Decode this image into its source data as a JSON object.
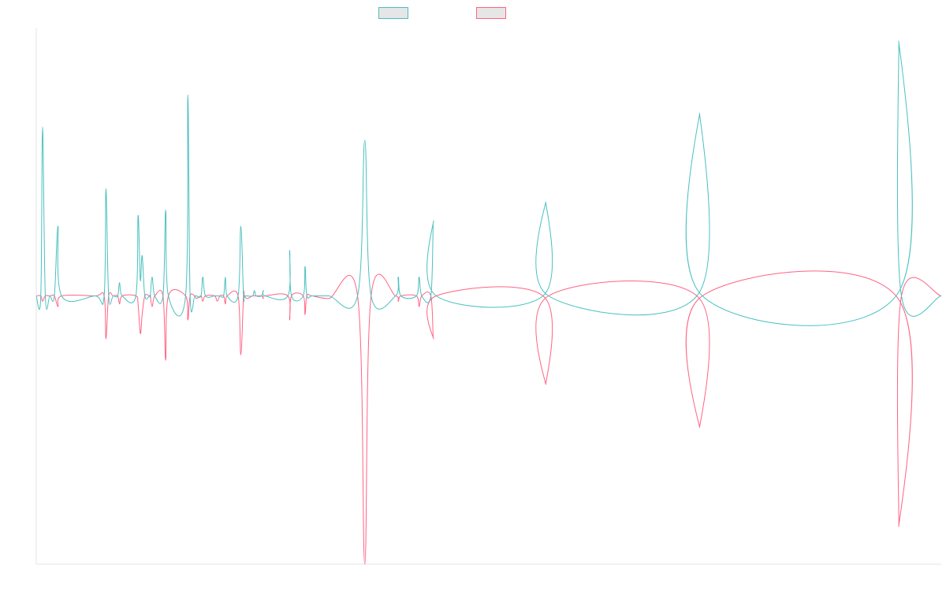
{
  "colors": {
    "series_a": "#4bc0c0",
    "series_b": "#ff6384",
    "legend_fill": "#e6e6e6",
    "axis": "#e5e5e5",
    "background": "#ffffff"
  },
  "legend": {
    "items": [
      {
        "label": "",
        "color": "#4bc0c0"
      },
      {
        "label": "",
        "color": "#ff6384"
      }
    ]
  },
  "chart_data": {
    "type": "line",
    "title": "",
    "xlabel": "",
    "ylabel": "",
    "ylim": [
      -1,
      1
    ],
    "grid": false,
    "legend_position": "top",
    "series": [
      {
        "color": "#4bc0c0",
        "points": [
          [
            0.0,
            0.0
          ],
          [
            0.5,
            0.0
          ],
          [
            0.7,
            0.63
          ],
          [
            1.0,
            0.0
          ],
          [
            1.5,
            0.0
          ],
          [
            2.0,
            0.0
          ],
          [
            2.4,
            0.26
          ],
          [
            2.8,
            0.0
          ],
          [
            6.5,
            0.0
          ],
          [
            7.5,
            0.0
          ],
          [
            7.7,
            0.4
          ],
          [
            8.0,
            0.0
          ],
          [
            8.5,
            0.0
          ],
          [
            9.0,
            0.0
          ],
          [
            9.2,
            0.05
          ],
          [
            9.5,
            0.0
          ],
          [
            11.0,
            0.0
          ],
          [
            11.25,
            0.3
          ],
          [
            11.5,
            0.06
          ],
          [
            11.7,
            0.15
          ],
          [
            12.0,
            0.0
          ],
          [
            12.5,
            0.0
          ],
          [
            12.6,
            0.0
          ],
          [
            12.8,
            0.07
          ],
          [
            13.1,
            0.0
          ],
          [
            14.0,
            0.0
          ],
          [
            14.3,
            0.32
          ],
          [
            14.6,
            0.0
          ],
          [
            16.5,
            0.0
          ],
          [
            16.75,
            0.75
          ],
          [
            17.0,
            0.0
          ],
          [
            17.5,
            0.0
          ],
          [
            17.7,
            0.0
          ],
          [
            18.2,
            0.0
          ],
          [
            18.4,
            0.07
          ],
          [
            18.7,
            0.0
          ],
          [
            19.7,
            0.0
          ],
          [
            20.0,
            0.0
          ],
          [
            20.3,
            0.0
          ],
          [
            20.7,
            0.0
          ],
          [
            20.9,
            0.07
          ],
          [
            21.1,
            0.0
          ],
          [
            22.3,
            0.0
          ],
          [
            22.6,
            0.26
          ],
          [
            22.9,
            0.0
          ],
          [
            23.0,
            0.0
          ],
          [
            23.3,
            0.0
          ],
          [
            23.9,
            0.0
          ],
          [
            24.1,
            0.02
          ],
          [
            24.3,
            0.0
          ],
          [
            24.9,
            0.0
          ],
          [
            25.1,
            0.02
          ],
          [
            25.3,
            0.0
          ],
          [
            27.8,
            0.0
          ],
          [
            28.0,
            0.17
          ],
          [
            28.2,
            0.0
          ],
          [
            29.5,
            0.0
          ],
          [
            29.7,
            0.11
          ],
          [
            29.9,
            0.0
          ],
          [
            30.5,
            0.0
          ],
          [
            32.3,
            0.0
          ],
          [
            35.5,
            0.0
          ],
          [
            36.3,
            0.58
          ],
          [
            37.0,
            0.0
          ],
          [
            39.7,
            0.0
          ],
          [
            40.0,
            0.07
          ],
          [
            40.3,
            0.0
          ],
          [
            42.0,
            0.0
          ],
          [
            42.3,
            0.07
          ],
          [
            42.6,
            0.0
          ],
          [
            43.6,
            0.0
          ],
          [
            43.9,
            0.28
          ],
          [
            44.2,
            0.0
          ],
          [
            56.0,
            0.0
          ],
          [
            56.3,
            0.35
          ],
          [
            56.6,
            0.0
          ],
          [
            73.0,
            0.0
          ],
          [
            73.3,
            0.68
          ],
          [
            73.6,
            0.0
          ],
          [
            95.0,
            0.0
          ],
          [
            95.3,
            0.95
          ],
          [
            95.6,
            0.0
          ],
          [
            100.0,
            0.0
          ]
        ]
      },
      {
        "color": "#ff6384",
        "points": [
          [
            0.0,
            0.0
          ],
          [
            0.5,
            0.0
          ],
          [
            0.7,
            -0.02
          ],
          [
            1.0,
            0.0
          ],
          [
            1.5,
            0.0
          ],
          [
            2.0,
            0.0
          ],
          [
            2.4,
            -0.04
          ],
          [
            2.8,
            0.0
          ],
          [
            6.5,
            0.0
          ],
          [
            7.5,
            0.0
          ],
          [
            7.7,
            -0.16
          ],
          [
            8.0,
            0.0
          ],
          [
            8.5,
            0.0
          ],
          [
            9.0,
            0.0
          ],
          [
            9.2,
            -0.03
          ],
          [
            9.5,
            0.0
          ],
          [
            11.0,
            0.0
          ],
          [
            11.25,
            -0.03
          ],
          [
            11.5,
            -0.14
          ],
          [
            11.7,
            -0.07
          ],
          [
            12.0,
            0.0
          ],
          [
            12.5,
            0.0
          ],
          [
            12.6,
            0.0
          ],
          [
            12.8,
            -0.04
          ],
          [
            13.1,
            0.0
          ],
          [
            14.0,
            0.0
          ],
          [
            14.3,
            -0.24
          ],
          [
            14.6,
            0.0
          ],
          [
            16.5,
            0.0
          ],
          [
            16.75,
            -0.09
          ],
          [
            17.0,
            0.0
          ],
          [
            17.5,
            0.0
          ],
          [
            17.7,
            -0.01
          ],
          [
            18.2,
            0.0
          ],
          [
            18.4,
            -0.02
          ],
          [
            18.7,
            0.0
          ],
          [
            19.7,
            0.0
          ],
          [
            20.0,
            -0.02
          ],
          [
            20.3,
            0.0
          ],
          [
            20.7,
            0.0
          ],
          [
            20.9,
            -0.03
          ],
          [
            21.1,
            0.0
          ],
          [
            22.3,
            0.0
          ],
          [
            22.6,
            -0.22
          ],
          [
            22.9,
            0.0
          ],
          [
            23.0,
            0.0
          ],
          [
            23.3,
            -0.01
          ],
          [
            23.9,
            0.0
          ],
          [
            24.1,
            0.0
          ],
          [
            24.3,
            0.0
          ],
          [
            24.9,
            0.0
          ],
          [
            25.1,
            -0.01
          ],
          [
            25.3,
            0.0
          ],
          [
            27.8,
            0.0
          ],
          [
            28.0,
            -0.09
          ],
          [
            28.2,
            0.0
          ],
          [
            29.5,
            0.0
          ],
          [
            29.7,
            -0.07
          ],
          [
            29.9,
            0.0
          ],
          [
            30.5,
            0.0
          ],
          [
            32.3,
            -0.01
          ],
          [
            35.5,
            0.0
          ],
          [
            36.3,
            -1.0
          ],
          [
            37.0,
            0.0
          ],
          [
            39.7,
            0.0
          ],
          [
            40.0,
            -0.02
          ],
          [
            40.3,
            0.0
          ],
          [
            42.0,
            0.0
          ],
          [
            42.3,
            -0.04
          ],
          [
            42.6,
            0.0
          ],
          [
            43.6,
            0.0
          ],
          [
            43.9,
            -0.16
          ],
          [
            44.2,
            0.0
          ],
          [
            56.0,
            0.0
          ],
          [
            56.3,
            -0.33
          ],
          [
            56.6,
            0.0
          ],
          [
            73.0,
            0.0
          ],
          [
            73.3,
            -0.49
          ],
          [
            73.6,
            0.0
          ],
          [
            95.0,
            0.0
          ],
          [
            95.3,
            -0.86
          ],
          [
            95.6,
            0.0
          ],
          [
            100.0,
            0.0
          ]
        ]
      }
    ]
  }
}
